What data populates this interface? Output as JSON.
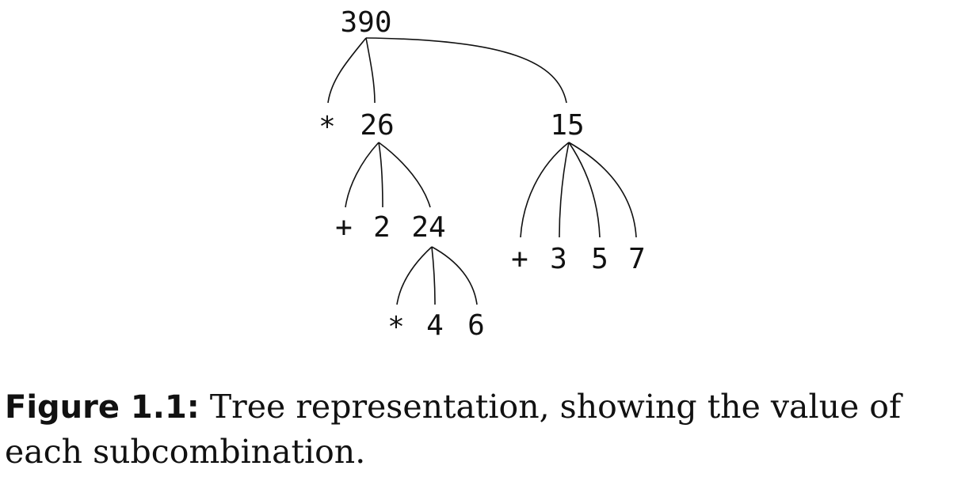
{
  "tree": {
    "root": "390",
    "left_operator": "*",
    "left_value": "26",
    "right_value": "15",
    "plus1": "+",
    "two": "2",
    "twentyfour": "24",
    "times2": "*",
    "four": "4",
    "six": "6",
    "plus2": "+",
    "three": "3",
    "five": "5",
    "seven": "7"
  },
  "caption": {
    "label": "Figure 1.1:",
    "text": "Tree representation, showing the value of each subcombination."
  }
}
